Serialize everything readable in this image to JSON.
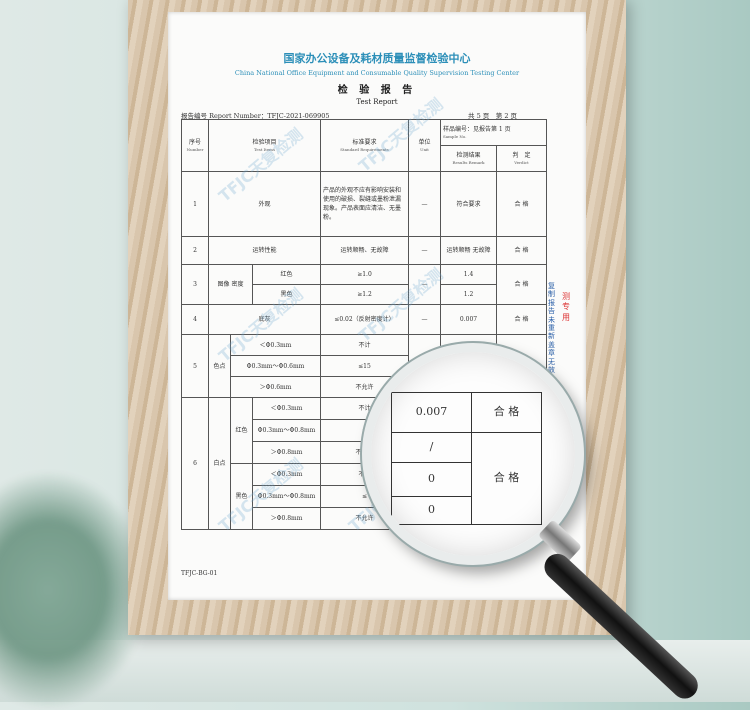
{
  "report": {
    "org_cn": "国家办公设备及耗材质量监督检验中心",
    "org_en": "China National Office Equipment and Consumable Quality Supervision Testing Center",
    "title_cn": "检 验 报 告",
    "title_en": "Test Report",
    "report_number_label": "报告编号 Report Number：",
    "report_number": "TFJC-2021-069905",
    "pages": "共 5 页",
    "page": "第 2 页",
    "headers": {
      "no_cn": "序号",
      "no_en": "Number",
      "item_cn": "检验项目",
      "item_en": "Test Items",
      "req_cn": "标准要求",
      "req_en": "Standard Requirements",
      "unit_cn": "单位",
      "unit_en": "Unit",
      "sample_cn": "样品编号：见报告第 1 页",
      "sample_en": "Sample No.",
      "result_cn": "检测结果",
      "result_en": "Results Remark",
      "verdict_cn": "判　定",
      "verdict_en": "Verdict"
    },
    "rows": {
      "r1": {
        "no": "1",
        "item": "外观",
        "req": "产品的外观不应有影响安装和使用的破损、裂缝或墨粉泄漏现象。产品表面应清洁、无墨粉。",
        "unit": "—",
        "result": "符合要求",
        "verdict": "合 格"
      },
      "r2": {
        "no": "2",
        "item": "运转性能",
        "req": "运转顺畅、无故障",
        "unit": "—",
        "result": "运转顺畅 无故障",
        "verdict": "合 格"
      },
      "r3": {
        "no": "3",
        "item": "图像 密度",
        "sub1": "红色",
        "req1": "≥1.0",
        "res1": "1.4",
        "sub2": "黑色",
        "req2": "≥1.2",
        "res2": "1.2",
        "unit": "—",
        "verdict": "合 格"
      },
      "r4": {
        "no": "4",
        "item": "底灰",
        "req": "≤0.02（反射密度计）",
        "unit": "—",
        "result": "0.007",
        "verdict": "合 格"
      },
      "r5": {
        "no": "5",
        "item": "色点",
        "s1": "＜Φ0.3mm",
        "q1": "不计",
        "v1": "/",
        "s2": "Φ0.3mm～Φ0.6mm",
        "q2": "≤15",
        "v2": "0",
        "s3": "＞Φ0.6mm",
        "q3": "不允许"
      },
      "r6": {
        "no": "6",
        "item": "白点",
        "g1": "红色",
        "g2": "黑色",
        "s1": "＜Φ0.3mm",
        "q1": "不计",
        "s2": "Φ0.3mm～Φ0.8mm",
        "q2": "≤",
        "s3": "＞Φ0.8mm",
        "q3": "不允许",
        "s4": "＜Φ0.3mm",
        "q4": "不计",
        "s5": "Φ0.3mm～Φ0.8mm",
        "q5": "≤",
        "s6": "＞Φ0.8mm",
        "q6": "不允许"
      }
    },
    "form_code": "TFJC-BG-01",
    "side_stamp": "复制报告未重新盖章无效",
    "red_stamp": "测 专 用",
    "watermark": "TFJC天复检测"
  },
  "magnifier": {
    "c1": "0.007",
    "c2": "合 格",
    "c3": "/",
    "c4": "0",
    "c5": "合 格",
    "c6": "0"
  }
}
